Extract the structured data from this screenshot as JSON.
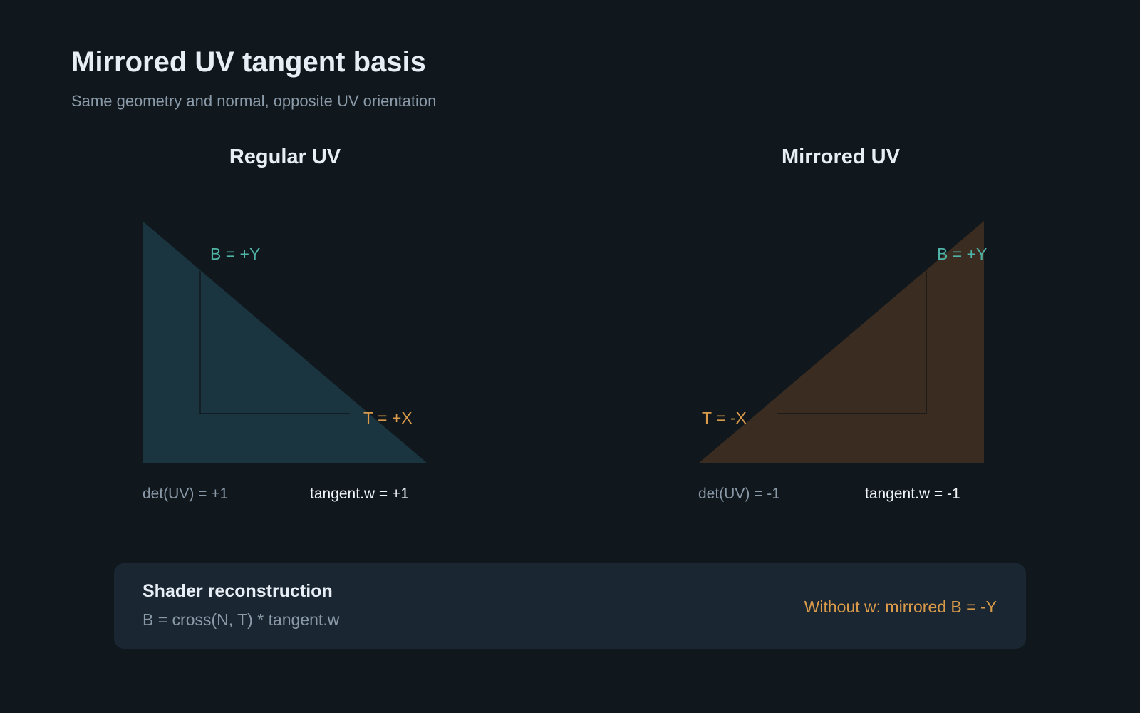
{
  "header": {
    "title": "Mirrored UV tangent basis",
    "subtitle": "Same geometry and normal, opposite UV orientation"
  },
  "panels": [
    {
      "title": "Regular UV",
      "b_label": "B = +Y",
      "t_label": "T = +X",
      "det": "det(UV) = +1",
      "tangent_w": "tangent.w = +1"
    },
    {
      "title": "Mirrored UV",
      "b_label": "B = +Y",
      "t_label": "T = -X",
      "det": "det(UV) = -1",
      "tangent_w": "tangent.w = -1"
    }
  ],
  "footer": {
    "title": "Shader reconstruction",
    "formula": "B = cross(N, T) * tangent.w",
    "note": "Without w: mirrored B = -Y"
  }
}
